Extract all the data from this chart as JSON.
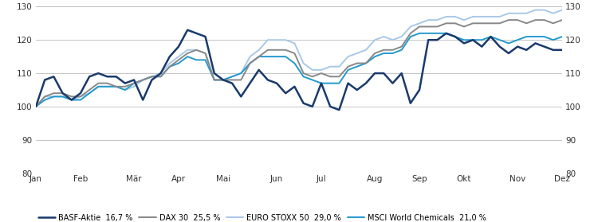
{
  "x_labels": [
    "Jan",
    "Feb",
    "Mär",
    "Apr",
    "Mai",
    "Jun",
    "Jul",
    "Aug",
    "Sep",
    "Okt",
    "Nov",
    "Dez"
  ],
  "ylim": [
    80,
    130
  ],
  "yticks": [
    80,
    90,
    100,
    110,
    120,
    130
  ],
  "legend": [
    {
      "label": "BASF-Aktie  16,7 %",
      "color": "#1a3a6b",
      "lw": 1.8
    },
    {
      "label": "DAX 30  25,5 %",
      "color": "#888888",
      "lw": 1.4
    },
    {
      "label": "EURO STOXX 50  29,0 %",
      "color": "#a8c8e8",
      "lw": 1.4
    },
    {
      "label": "MSCI World Chemicals  21,0 %",
      "color": "#2299cc",
      "lw": 1.4
    }
  ],
  "basf": [
    100,
    108,
    109,
    104,
    102,
    104,
    109,
    110,
    109,
    109,
    107,
    108,
    102,
    108,
    110,
    115,
    118,
    123,
    122,
    121,
    110,
    108,
    107,
    103,
    107,
    111,
    108,
    107,
    104,
    106,
    101,
    100,
    107,
    100,
    99,
    107,
    105,
    107,
    110,
    110,
    107,
    110,
    101,
    105,
    120,
    120,
    122,
    121,
    119,
    120,
    118,
    121,
    118,
    116,
    118,
    117,
    119,
    118,
    117,
    117
  ],
  "dax": [
    100,
    103,
    104,
    104,
    103,
    103,
    105,
    107,
    107,
    106,
    106,
    107,
    108,
    109,
    109,
    112,
    114,
    116,
    117,
    116,
    108,
    108,
    108,
    108,
    113,
    115,
    117,
    117,
    117,
    116,
    110,
    109,
    110,
    109,
    109,
    112,
    113,
    113,
    116,
    117,
    117,
    118,
    122,
    124,
    124,
    124,
    125,
    125,
    124,
    125,
    125,
    125,
    125,
    126,
    126,
    125,
    126,
    126,
    125,
    126
  ],
  "eurostoxx": [
    100,
    103,
    103,
    103,
    102,
    103,
    104,
    106,
    106,
    106,
    105,
    106,
    108,
    109,
    110,
    113,
    115,
    117,
    117,
    116,
    108,
    108,
    109,
    110,
    115,
    117,
    120,
    120,
    120,
    119,
    113,
    111,
    111,
    112,
    112,
    115,
    116,
    117,
    120,
    121,
    120,
    121,
    124,
    125,
    126,
    126,
    127,
    127,
    126,
    127,
    127,
    127,
    127,
    128,
    128,
    128,
    129,
    129,
    128,
    129
  ],
  "msci": [
    100,
    102,
    103,
    103,
    102,
    102,
    104,
    106,
    106,
    106,
    105,
    107,
    108,
    109,
    109,
    112,
    113,
    115,
    114,
    114,
    108,
    108,
    109,
    110,
    113,
    115,
    115,
    115,
    115,
    113,
    109,
    108,
    107,
    107,
    107,
    111,
    112,
    113,
    115,
    116,
    116,
    117,
    121,
    122,
    122,
    122,
    122,
    121,
    120,
    120,
    120,
    121,
    120,
    119,
    120,
    121,
    121,
    121,
    120,
    121
  ],
  "background_color": "#ffffff",
  "grid_color": "#bbbbbb",
  "label_fontsize": 7.5,
  "legend_fontsize": 7.0
}
